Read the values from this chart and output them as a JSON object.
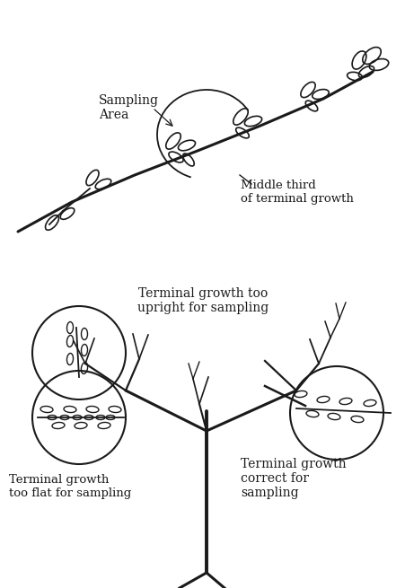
{
  "bg_color": "#ffffff",
  "line_color": "#1a1a1a",
  "text_color": "#1a1a1a",
  "sampling_area_label": "Sampling\nArea",
  "middle_third_label": "Middle third\nof terminal growth",
  "terminal_upright_label": "Terminal growth too\nupright for sampling",
  "terminal_flat_label": "Terminal growth\ntoo flat for sampling",
  "terminal_correct_label": "Terminal growth\ncorrect for\nsampling",
  "fig_width": 4.52,
  "fig_height": 6.55,
  "dpi": 100
}
